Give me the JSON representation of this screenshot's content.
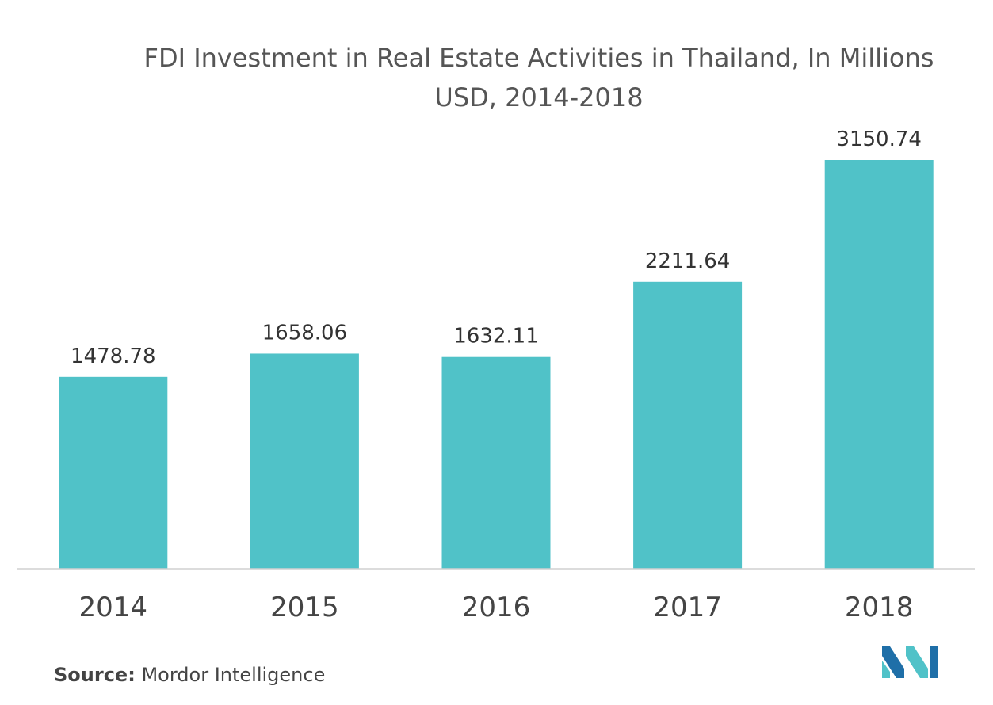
{
  "chart_data": {
    "type": "bar",
    "title": "FDI Investment in Real Estate Activities in Thailand, In Millions USD, 2014-2018",
    "categories": [
      "2014",
      "2015",
      "2016",
      "2017",
      "2018"
    ],
    "values": [
      1478.78,
      1658.06,
      1632.11,
      2211.64,
      3150.74
    ],
    "value_labels": [
      "1478.78",
      "1658.06",
      "1632.11",
      "2211.64",
      "3150.74"
    ],
    "xlabel": "",
    "ylabel": "",
    "ylim": [
      0,
      3150.74
    ],
    "grid": false,
    "legend": "none",
    "bar_color": "#50c2c8"
  },
  "source": {
    "label": "Source:",
    "text": "Mordor Intelligence"
  },
  "logo": {
    "icon": "mordor-intelligence-logo",
    "colors": [
      "#1f6fa8",
      "#50c2c8"
    ]
  }
}
